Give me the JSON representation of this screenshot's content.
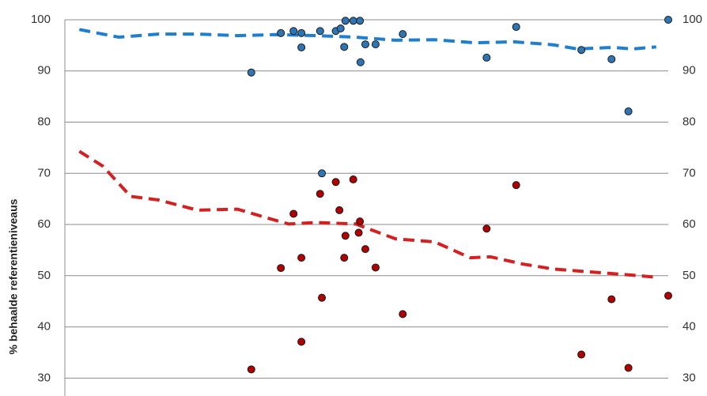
{
  "chart_data": {
    "type": "scatter",
    "y_label": "% behaalde referentieniveaus",
    "xlim": [
      0,
      100
    ],
    "ylim": [
      26.5,
      100
    ],
    "yticks": [
      30,
      40,
      50,
      60,
      70,
      80,
      90,
      100
    ],
    "y2lim": [
      26.5,
      100
    ],
    "y2ticks": [
      30,
      40,
      50,
      60,
      70,
      80,
      90,
      100
    ],
    "grid": true,
    "series": [
      {
        "type": "scatter",
        "color": "#2e75b6",
        "x": [
          30.9,
          35.8,
          37.9,
          39.2,
          39.2,
          42.3,
          42.6,
          44.9,
          45.7,
          46.5,
          47.8,
          48.9,
          46.3,
          49.0,
          49.8,
          51.5,
          56.0,
          69.9,
          74.8,
          85.6,
          90.6,
          93.4,
          100
        ],
        "values": [
          89.7,
          97.4,
          97.8,
          97.4,
          94.6,
          97.8,
          70.0,
          97.8,
          98.3,
          99.8,
          99.8,
          99.8,
          94.7,
          91.7,
          95.2,
          95.2,
          97.2,
          92.6,
          98.6,
          94.1,
          92.3,
          82.1,
          100
        ]
      },
      {
        "type": "scatter",
        "color": "#b00000",
        "x": [
          30.9,
          35.8,
          37.9,
          39.2,
          39.2,
          42.3,
          42.6,
          44.9,
          45.5,
          46.5,
          46.3,
          47.8,
          48.7,
          48.9,
          49.8,
          51.5,
          56.0,
          69.9,
          74.8,
          85.6,
          90.6,
          93.4,
          100
        ],
        "values": [
          31.7,
          51.5,
          62.1,
          53.5,
          37.1,
          66.0,
          45.7,
          68.3,
          62.8,
          57.8,
          53.5,
          68.8,
          58.4,
          60.6,
          55.2,
          51.6,
          42.5,
          59.2,
          67.7,
          34.6,
          45.4,
          32.0,
          46.1
        ]
      },
      {
        "type": "line",
        "color": "#1f7ed0",
        "dashed": true,
        "x": [
          2.4,
          8.9,
          15.5,
          22.0,
          28.6,
          35.1,
          41.7,
          48.2,
          54.8,
          61.3,
          68.0,
          74.4,
          81.0,
          84.9,
          90.8,
          94.1,
          98.0
        ],
        "values": [
          98.1,
          96.6,
          97.2,
          97.2,
          96.9,
          97.1,
          96.9,
          96.6,
          96.0,
          96.1,
          95.5,
          95.7,
          95.1,
          94.3,
          94.6,
          94.3,
          94.7
        ]
      },
      {
        "type": "line",
        "color": "#d42020",
        "dashed": true,
        "x": [
          2.4,
          6.3,
          10.9,
          15.5,
          22.0,
          28.6,
          33.8,
          37.1,
          41.7,
          48.2,
          54.8,
          61.3,
          67.2,
          70.5,
          75.8,
          81.0,
          87.5,
          94.1,
          98.0
        ],
        "values": [
          74.3,
          71.4,
          65.5,
          64.8,
          62.8,
          63.0,
          61.2,
          60.1,
          60.4,
          60.1,
          57.2,
          56.6,
          53.5,
          53.7,
          52.3,
          51.3,
          50.7,
          50.1,
          49.7
        ]
      }
    ]
  }
}
